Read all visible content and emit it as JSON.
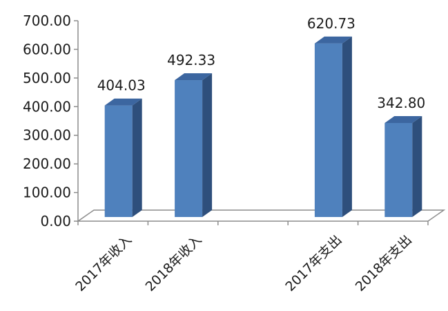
{
  "chart_data": {
    "type": "bar",
    "style": "3d-column",
    "categories": [
      "2017年收入",
      "2018年收入",
      "",
      "2017年支出",
      "2018年支出"
    ],
    "values": [
      404.03,
      492.33,
      null,
      620.73,
      342.8
    ],
    "data_labels": [
      "404.03",
      "492.33",
      "",
      "620.73",
      "342.80"
    ],
    "ylim": [
      0,
      700
    ],
    "yticks": [
      "0.00",
      "100.00",
      "200.00",
      "300.00",
      "400.00",
      "500.00",
      "600.00",
      "700.00"
    ],
    "grid": false,
    "legend": "none",
    "colors": {
      "bar_front": "#4f81bd",
      "bar_side": "#2e4f7c",
      "bar_top": "#3c66a0",
      "axis": "#8c8c8c"
    }
  }
}
